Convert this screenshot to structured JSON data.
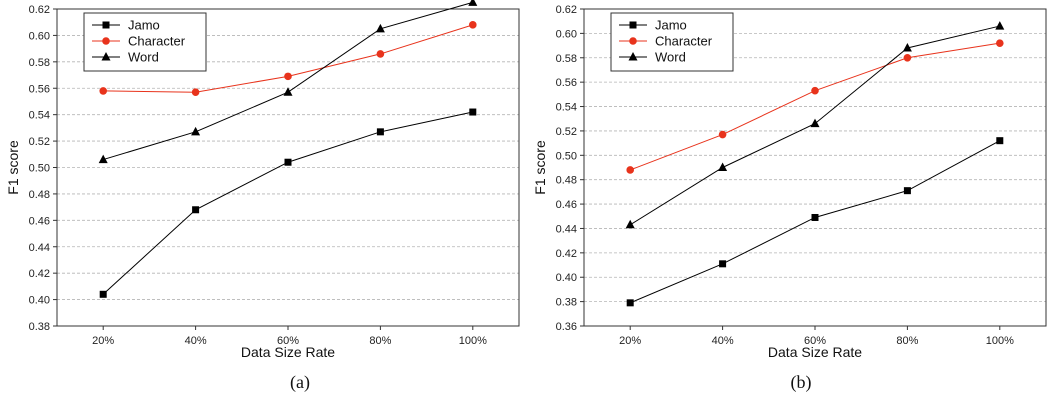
{
  "chart_data": [
    {
      "type": "line",
      "categories": [
        "20%",
        "40%",
        "60%",
        "80%",
        "100%"
      ],
      "xlabel": "Data Size Rate",
      "ylabel": "F1 score",
      "ylim": [
        0.38,
        0.62
      ],
      "yticks": [
        "0.38",
        "0.40",
        "0.42",
        "0.44",
        "0.46",
        "0.48",
        "0.50",
        "0.52",
        "0.54",
        "0.56",
        "0.58",
        "0.60",
        "0.62"
      ],
      "grid": true,
      "legend": "top-left",
      "caption": "(a)",
      "series": [
        {
          "name": "Jamo",
          "values": [
            0.404,
            0.468,
            0.504,
            0.527,
            0.542
          ],
          "color": "#000000",
          "marker": "square"
        },
        {
          "name": "Character",
          "values": [
            0.558,
            0.557,
            0.569,
            0.586,
            0.608
          ],
          "color": "#e8331c",
          "marker": "circle"
        },
        {
          "name": "Word",
          "values": [
            0.506,
            0.527,
            0.557,
            0.605,
            0.625
          ],
          "color": "#000000",
          "marker": "triangle"
        }
      ]
    },
    {
      "type": "line",
      "categories": [
        "20%",
        "40%",
        "60%",
        "80%",
        "100%"
      ],
      "xlabel": "Data Size Rate",
      "ylabel": "F1 score",
      "ylim": [
        0.36,
        0.62
      ],
      "yticks": [
        "0.36",
        "0.38",
        "0.40",
        "0.42",
        "0.44",
        "0.46",
        "0.48",
        "0.50",
        "0.52",
        "0.54",
        "0.56",
        "0.58",
        "0.60",
        "0.62"
      ],
      "grid": true,
      "legend": "top-left",
      "caption": "(b)",
      "series": [
        {
          "name": "Jamo",
          "values": [
            0.379,
            0.411,
            0.449,
            0.471,
            0.512
          ],
          "color": "#000000",
          "marker": "square"
        },
        {
          "name": "Character",
          "values": [
            0.488,
            0.517,
            0.553,
            0.58,
            0.592
          ],
          "color": "#e8331c",
          "marker": "circle"
        },
        {
          "name": "Word",
          "values": [
            0.443,
            0.49,
            0.526,
            0.588,
            0.606
          ],
          "color": "#000000",
          "marker": "triangle"
        }
      ]
    }
  ]
}
